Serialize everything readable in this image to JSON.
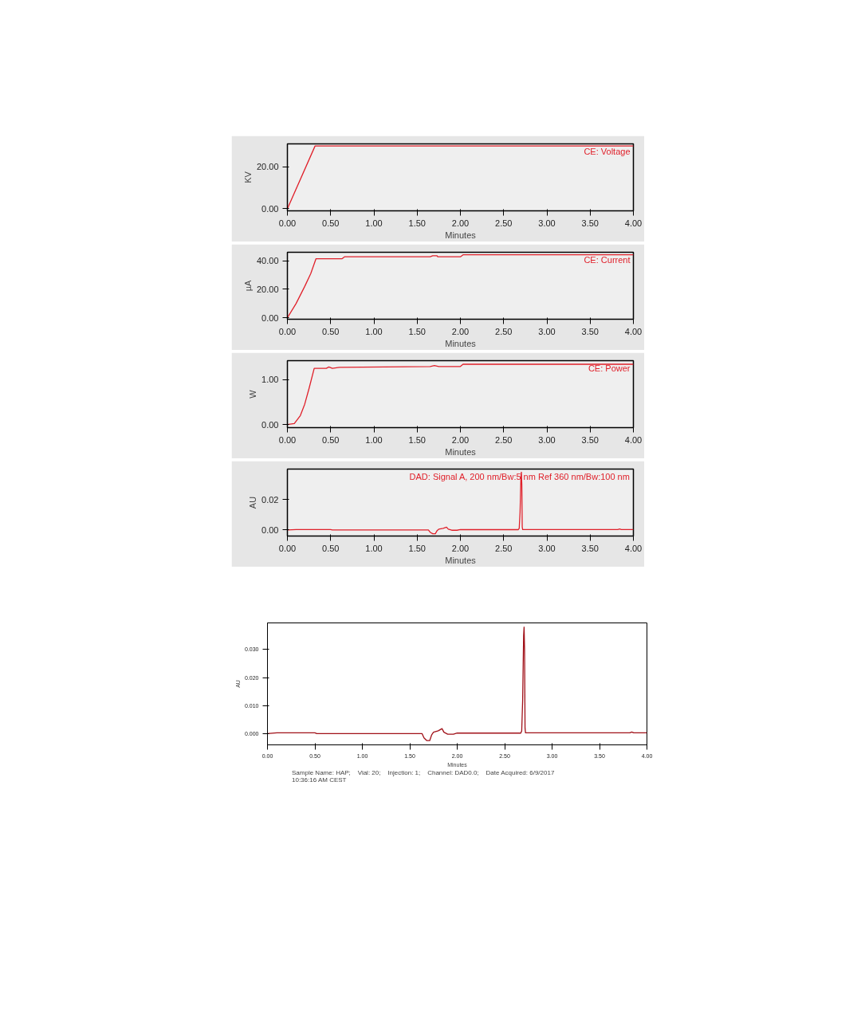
{
  "chart_data": [
    {
      "type": "line",
      "xlabel": "Minutes",
      "ylabel": "KV",
      "x": [
        0,
        0.32,
        4.0
      ],
      "series": [
        {
          "name": "CE: Voltage",
          "color": "#e0202a",
          "values": [
            0,
            30,
            30
          ]
        }
      ],
      "xlim": [
        0,
        4.0
      ],
      "xticks": [
        {
          "value": 0,
          "label": "0.00"
        },
        {
          "value": 0.5,
          "label": "0.50"
        },
        {
          "value": 1,
          "label": "1.00"
        },
        {
          "value": 1.5,
          "label": "1.50"
        },
        {
          "value": 2,
          "label": "2.00"
        },
        {
          "value": 2.5,
          "label": "2.50"
        },
        {
          "value": 3,
          "label": "3.00"
        },
        {
          "value": 3.5,
          "label": "3.50"
        },
        {
          "value": 4,
          "label": "4.00"
        }
      ],
      "ylim": [
        -1,
        31
      ],
      "yticks": [
        {
          "value": 0,
          "label": "0.00"
        },
        {
          "value": 20,
          "label": "20.00"
        }
      ]
    },
    {
      "type": "line",
      "xlabel": "Minutes",
      "ylabel": "µA",
      "x": [
        0,
        0.1,
        0.2,
        0.27,
        0.33,
        0.63,
        0.66,
        1.65,
        1.68,
        1.73,
        1.74,
        2.0,
        2.03,
        4.0
      ],
      "series": [
        {
          "name": "CE: Current",
          "color": "#e0202a",
          "values": [
            0,
            10,
            22,
            31,
            41.4,
            41.4,
            42.8,
            42.8,
            43.5,
            43.5,
            42.8,
            42.8,
            44.2,
            44.2
          ]
        }
      ],
      "xlim": [
        0,
        4.0
      ],
      "xticks": [
        {
          "value": 0,
          "label": "0.00"
        },
        {
          "value": 0.5,
          "label": "0.50"
        },
        {
          "value": 1,
          "label": "1.00"
        },
        {
          "value": 1.5,
          "label": "1.50"
        },
        {
          "value": 2,
          "label": "2.00"
        },
        {
          "value": 2.5,
          "label": "2.50"
        },
        {
          "value": 3,
          "label": "3.00"
        },
        {
          "value": 3.5,
          "label": "3.50"
        },
        {
          "value": 4,
          "label": "4.00"
        }
      ],
      "ylim": [
        -1,
        46
      ],
      "yticks": [
        {
          "value": 0,
          "label": "0.00"
        },
        {
          "value": 20,
          "label": "20.00"
        },
        {
          "value": 40,
          "label": "40.00"
        }
      ]
    },
    {
      "type": "line",
      "xlabel": "Minutes",
      "ylabel": "W",
      "x": [
        0,
        0.08,
        0.15,
        0.2,
        0.25,
        0.31,
        0.45,
        0.48,
        0.52,
        0.6,
        1.65,
        1.7,
        1.75,
        2.0,
        2.03,
        4.0
      ],
      "series": [
        {
          "name": "CE: Power",
          "color": "#e0202a",
          "values": [
            0,
            0.02,
            0.2,
            0.45,
            0.8,
            1.25,
            1.25,
            1.28,
            1.25,
            1.27,
            1.29,
            1.31,
            1.29,
            1.29,
            1.34,
            1.34
          ]
        }
      ],
      "xlim": [
        0,
        4.0
      ],
      "xticks": [
        {
          "value": 0,
          "label": "0.00"
        },
        {
          "value": 0.5,
          "label": "0.50"
        },
        {
          "value": 1,
          "label": "1.00"
        },
        {
          "value": 1.5,
          "label": "1.50"
        },
        {
          "value": 2,
          "label": "2.00"
        },
        {
          "value": 2.5,
          "label": "2.50"
        },
        {
          "value": 3,
          "label": "3.00"
        },
        {
          "value": 3.5,
          "label": "3.50"
        },
        {
          "value": 4,
          "label": "4.00"
        }
      ],
      "ylim": [
        -0.07,
        1.42
      ],
      "yticks": [
        {
          "value": 0,
          "label": "0.00"
        },
        {
          "value": 1,
          "label": "1.00"
        }
      ]
    },
    {
      "type": "line",
      "xlabel": "Minutes",
      "ylabel": "AU",
      "x": [
        0,
        0.1,
        0.5,
        0.52,
        1.22,
        1.63,
        1.65,
        1.68,
        1.71,
        1.73,
        1.75,
        1.8,
        1.84,
        1.86,
        1.9,
        1.96,
        2.0,
        2.67,
        2.68,
        2.69,
        2.7,
        2.705,
        2.71,
        2.715,
        2.72,
        3.82,
        3.84,
        3.86,
        4.0
      ],
      "series": [
        {
          "name": "DAD: Signal A, 200 nm/Bw:5 nm Ref 360 nm/Bw:100 nm",
          "color": "#e0202a",
          "values": [
            0,
            0.0003,
            0.0003,
            0,
            0,
            0,
            -0.0015,
            -0.0025,
            -0.0025,
            -0.0005,
            0.0005,
            0.001,
            0.0018,
            0.0005,
            -0.0002,
            -0.0002,
            0.0002,
            0.0002,
            0.001,
            0.012,
            0.035,
            0.038,
            0.03,
            0.002,
            0.0003,
            0.0003,
            0.0006,
            0.0003,
            0.0003
          ]
        }
      ],
      "xlim": [
        0,
        4.0
      ],
      "xticks": [
        {
          "value": 0,
          "label": "0.00"
        },
        {
          "value": 0.5,
          "label": "0.50"
        },
        {
          "value": 1,
          "label": "1.00"
        },
        {
          "value": 1.5,
          "label": "1.50"
        },
        {
          "value": 2,
          "label": "2.00"
        },
        {
          "value": 2.5,
          "label": "2.50"
        },
        {
          "value": 3,
          "label": "3.00"
        },
        {
          "value": 3.5,
          "label": "3.50"
        },
        {
          "value": 4,
          "label": "4.00"
        }
      ],
      "ylim": [
        -0.004,
        0.04
      ],
      "yticks": [
        {
          "value": 0,
          "label": "0.00"
        },
        {
          "value": 0.02,
          "label": "0.02"
        }
      ]
    },
    {
      "type": "line",
      "xlabel": "Minutes",
      "ylabel": "AU",
      "legend": "bottom",
      "x": [
        0,
        0.1,
        0.5,
        0.52,
        1.22,
        1.63,
        1.65,
        1.68,
        1.71,
        1.73,
        1.75,
        1.8,
        1.84,
        1.86,
        1.9,
        1.96,
        2.0,
        2.67,
        2.68,
        2.69,
        2.7,
        2.705,
        2.71,
        2.715,
        2.72,
        3.82,
        3.84,
        3.86,
        4.0
      ],
      "series": [
        {
          "name": "Sample Name: HAP;    Vial: 20;    Injection: 1;    Channel: DAD0.0;    Date Acquired: 6/9/2017 10:36:16 AM CEST",
          "color": "#a01018",
          "values": [
            0,
            0.0003,
            0.0003,
            0,
            0,
            0,
            -0.0015,
            -0.0025,
            -0.0025,
            -0.0005,
            0.0005,
            0.001,
            0.0018,
            0.0005,
            -0.0002,
            -0.0002,
            0.0002,
            0.0002,
            0.001,
            0.012,
            0.035,
            0.038,
            0.03,
            0.002,
            0.0003,
            0.0003,
            0.0006,
            0.0003,
            0.0003
          ]
        }
      ],
      "xlim": [
        0,
        4.0
      ],
      "xticks": [
        {
          "value": 0,
          "label": "0.00"
        },
        {
          "value": 0.5,
          "label": "0.50"
        },
        {
          "value": 1,
          "label": "1.00"
        },
        {
          "value": 1.5,
          "label": "1.50"
        },
        {
          "value": 2,
          "label": "2.00"
        },
        {
          "value": 2.5,
          "label": "2.50"
        },
        {
          "value": 3,
          "label": "3.00"
        },
        {
          "value": 3.5,
          "label": "3.50"
        },
        {
          "value": 4,
          "label": "4.00"
        }
      ],
      "ylim": [
        -0.004,
        0.0395
      ],
      "yticks": [
        {
          "value": 0,
          "label": "0.000"
        },
        {
          "value": 0.01,
          "label": "0.010"
        },
        {
          "value": 0.02,
          "label": "0.020"
        },
        {
          "value": 0.03,
          "label": "0.030"
        }
      ]
    }
  ]
}
